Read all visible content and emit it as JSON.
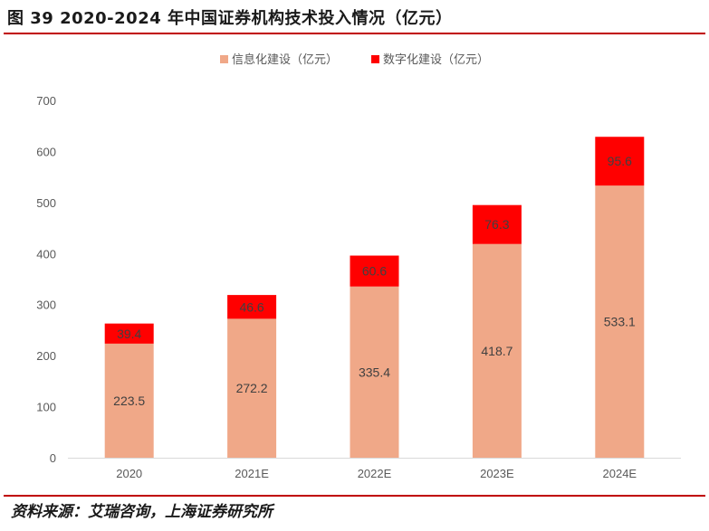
{
  "figure_title": "图 39 2020-2024 年中国证券机构技术投入情况（亿元）",
  "source": "资料来源：艾瑞咨询，上海证券研究所",
  "chart_data": {
    "type": "bar",
    "stacked": true,
    "categories": [
      "2020",
      "2021E",
      "2022E",
      "2023E",
      "2024E"
    ],
    "series": [
      {
        "name": "信息化建设（亿元）",
        "color": "#f0a888",
        "values": [
          223.5,
          272.2,
          335.4,
          418.7,
          533.1
        ]
      },
      {
        "name": "数字化建设（亿元）",
        "color": "#ff0000",
        "values": [
          39.4,
          46.6,
          60.6,
          76.3,
          95.6
        ]
      }
    ],
    "ylim": [
      0,
      700
    ],
    "yticks": [
      0,
      100,
      200,
      300,
      400,
      500,
      600,
      700
    ],
    "legend_position": "top",
    "grid": false
  }
}
